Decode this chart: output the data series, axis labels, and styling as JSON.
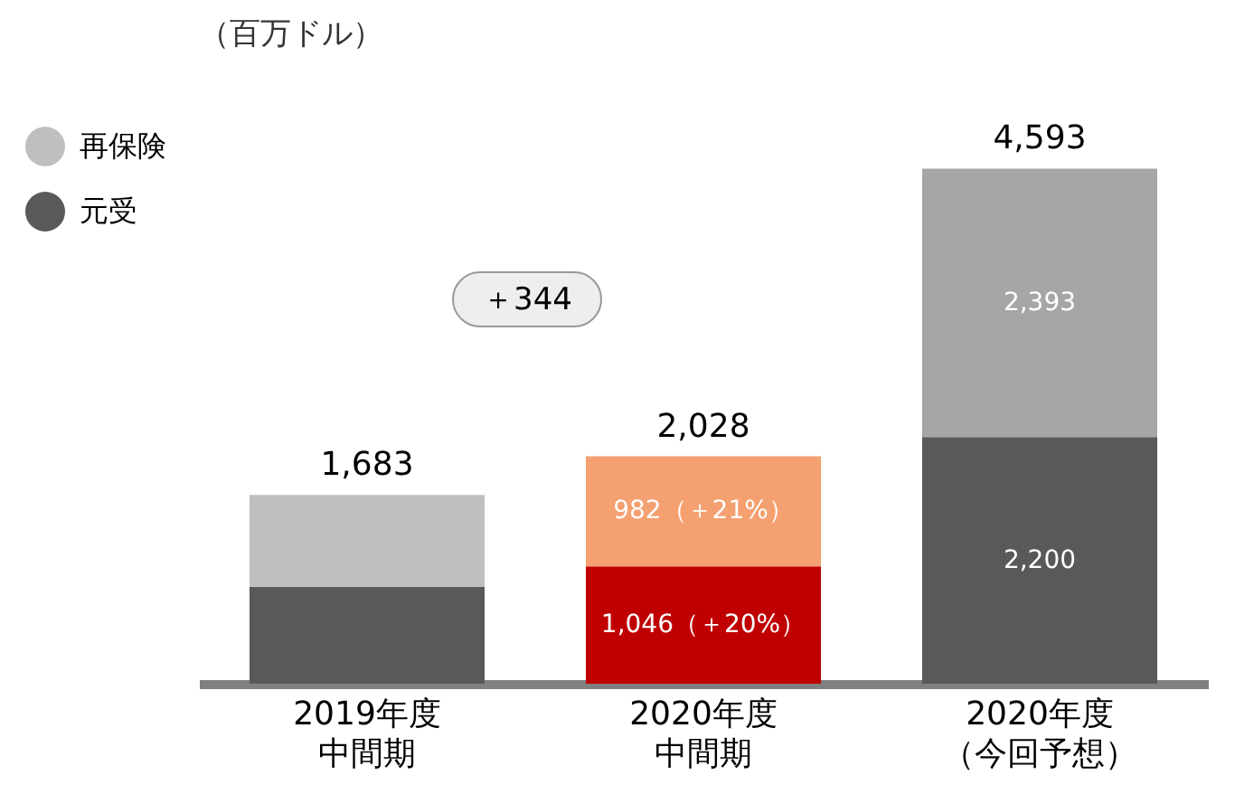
{
  "chart_data": {
    "type": "bar",
    "stacked": true,
    "ylabel": "（百万ドル）",
    "categories": [
      "2019年度中間期",
      "2020年度中間期",
      "2020年度（今回予想）"
    ],
    "series": [
      {
        "name": "元受",
        "color": "#595959",
        "colors": [
          "#595959",
          "#c00000",
          "#595959"
        ],
        "values": [
          864,
          1046,
          2200
        ],
        "value_labels": [
          null,
          "1,046（＋20%）",
          "2,200"
        ]
      },
      {
        "name": "再保険",
        "color": "#bfbfbf",
        "colors": [
          "#bfbfbf",
          "#f4a070",
          "#a6a6a6"
        ],
        "values": [
          819,
          982,
          2393
        ],
        "value_labels": [
          null,
          "982（＋21%）",
          "2,393"
        ]
      }
    ],
    "totals": [
      "1,683",
      "2,028",
      "4,593"
    ],
    "annotations": [
      "＋344"
    ],
    "legend": "top left"
  }
}
